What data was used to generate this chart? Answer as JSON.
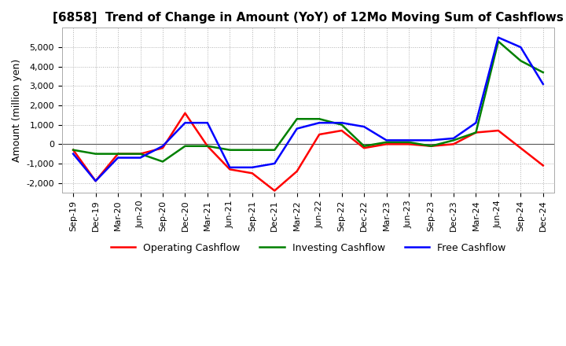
{
  "title": "[6858]  Trend of Change in Amount (YoY) of 12Mo Moving Sum of Cashflows",
  "ylabel": "Amount (million yen)",
  "x_labels": [
    "Sep-19",
    "Dec-19",
    "Mar-20",
    "Jun-20",
    "Sep-20",
    "Dec-20",
    "Mar-21",
    "Jun-21",
    "Sep-21",
    "Dec-21",
    "Mar-22",
    "Jun-22",
    "Sep-22",
    "Dec-22",
    "Mar-23",
    "Jun-23",
    "Sep-23",
    "Dec-23",
    "Mar-24",
    "Jun-24",
    "Sep-24",
    "Dec-24"
  ],
  "operating": [
    -300,
    -1900,
    -500,
    -500,
    -200,
    1600,
    -100,
    -1300,
    -1500,
    -2400,
    -1400,
    500,
    700,
    -200,
    0,
    0,
    -100,
    0,
    600,
    700,
    -200,
    -1100
  ],
  "investing": [
    -300,
    -500,
    -500,
    -500,
    -900,
    -100,
    -100,
    -300,
    -300,
    -300,
    1300,
    1300,
    1000,
    -100,
    100,
    100,
    -100,
    200,
    600,
    5300,
    4300,
    3700
  ],
  "free": [
    -500,
    -1900,
    -700,
    -700,
    -100,
    1100,
    1100,
    -1200,
    -1200,
    -1000,
    800,
    1100,
    1100,
    900,
    200,
    200,
    200,
    300,
    1100,
    5500,
    5000,
    3100
  ],
  "ylim": [
    -2500,
    6000
  ],
  "yticks": [
    -2000,
    -1000,
    0,
    1000,
    2000,
    3000,
    4000,
    5000
  ],
  "operating_color": "#ff0000",
  "investing_color": "#008000",
  "free_color": "#0000ff",
  "grid_color": "#b0b0b0",
  "background_color": "#ffffff",
  "title_fontsize": 11,
  "axis_fontsize": 8,
  "ylabel_fontsize": 9,
  "legend_fontsize": 9,
  "linewidth": 1.8
}
